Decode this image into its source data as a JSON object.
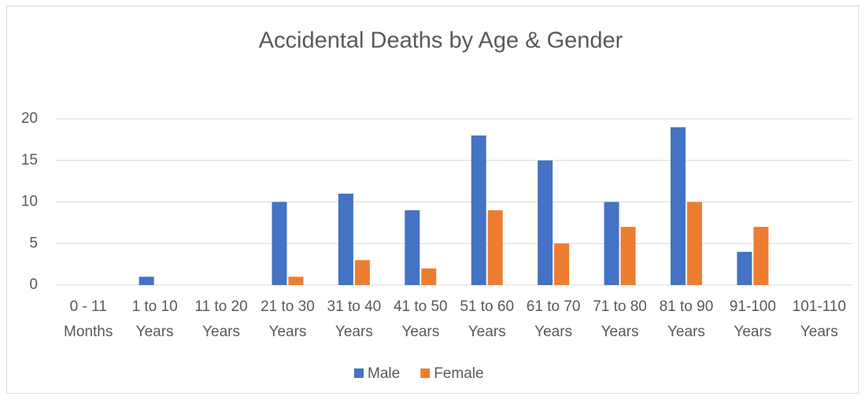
{
  "chart_data": {
    "type": "bar",
    "title": "Accidental Deaths by Age & Gender",
    "categories": [
      [
        "0 - 11",
        "Months"
      ],
      [
        "1 to 10",
        "Years"
      ],
      [
        "11 to 20",
        "Years"
      ],
      [
        "21 to 30",
        "Years"
      ],
      [
        "31 to 40",
        "Years"
      ],
      [
        "41 to 50",
        "Years"
      ],
      [
        "51 to 60",
        "Years"
      ],
      [
        "61 to 70",
        "Years"
      ],
      [
        "71 to 80",
        "Years"
      ],
      [
        "81 to 90",
        "Years"
      ],
      [
        "91-100",
        "Years"
      ],
      [
        "101-110",
        "Years"
      ]
    ],
    "series": [
      {
        "name": "Male",
        "color": "#4472c4",
        "values": [
          0,
          1,
          0,
          10,
          11,
          9,
          18,
          15,
          10,
          19,
          4,
          0
        ]
      },
      {
        "name": "Female",
        "color": "#ed7d31",
        "values": [
          0,
          0,
          0,
          1,
          3,
          2,
          9,
          5,
          7,
          10,
          7,
          0
        ]
      }
    ],
    "ylim": [
      0,
      20
    ],
    "yticks": [
      0,
      5,
      10,
      15,
      20
    ],
    "grid": true,
    "legend": "bottom"
  }
}
